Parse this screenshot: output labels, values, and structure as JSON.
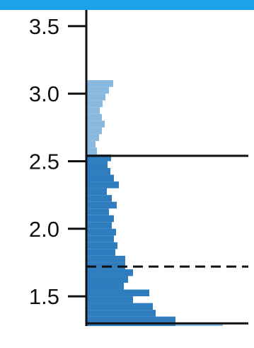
{
  "colors": {
    "top_band": "#1aa3e8",
    "bar_light": "#8ab9df",
    "bar_dark": "#2f7dbe",
    "axis": "#111111",
    "reference_line": "#111111"
  },
  "chart_data": {
    "type": "bar",
    "orientation": "horizontal",
    "title": "",
    "xlabel": "",
    "ylabel": "",
    "ylim": [
      1.28,
      3.62
    ],
    "xlim": [
      0,
      1
    ],
    "y_ticks": [
      {
        "value": 1.5,
        "label": "1.5"
      },
      {
        "value": 2.0,
        "label": "2.0"
      },
      {
        "value": 2.5,
        "label": "2.5"
      },
      {
        "value": 3.0,
        "label": "3.0"
      },
      {
        "value": 3.5,
        "label": "3.5"
      }
    ],
    "bin_width": 0.05,
    "series": [
      {
        "color": "#8ab9df",
        "bins": [
          {
            "y_low": 1.28,
            "y_high": 1.3,
            "value": 0.772
          },
          {
            "y_low": 2.55,
            "y_high": 2.6,
            "value": 0.06
          },
          {
            "y_low": 2.6,
            "y_high": 2.65,
            "value": 0.052
          },
          {
            "y_low": 2.65,
            "y_high": 2.7,
            "value": 0.072
          },
          {
            "y_low": 2.7,
            "y_high": 2.75,
            "value": 0.088
          },
          {
            "y_low": 2.75,
            "y_high": 2.8,
            "value": 0.104
          },
          {
            "y_low": 2.8,
            "y_high": 2.85,
            "value": 0.088
          },
          {
            "y_low": 2.85,
            "y_high": 2.9,
            "value": 0.076
          },
          {
            "y_low": 2.9,
            "y_high": 2.95,
            "value": 0.092
          },
          {
            "y_low": 2.95,
            "y_high": 3.0,
            "value": 0.108
          },
          {
            "y_low": 3.0,
            "y_high": 3.05,
            "value": 0.128
          },
          {
            "y_low": 3.05,
            "y_high": 3.1,
            "value": 0.152
          }
        ]
      },
      {
        "color": "#2f7dbe",
        "bins": [
          {
            "y_low": 1.28,
            "y_high": 1.35,
            "value": 0.504
          },
          {
            "y_low": 1.35,
            "y_high": 1.4,
            "value": 0.392
          },
          {
            "y_low": 1.4,
            "y_high": 1.45,
            "value": 0.376
          },
          {
            "y_low": 1.45,
            "y_high": 1.5,
            "value": 0.264
          },
          {
            "y_low": 1.5,
            "y_high": 1.55,
            "value": 0.356
          },
          {
            "y_low": 1.55,
            "y_high": 1.6,
            "value": 0.212
          },
          {
            "y_low": 1.6,
            "y_high": 1.65,
            "value": 0.236
          },
          {
            "y_low": 1.65,
            "y_high": 1.7,
            "value": 0.264
          },
          {
            "y_low": 1.7,
            "y_high": 1.75,
            "value": 0.22
          },
          {
            "y_low": 1.75,
            "y_high": 1.8,
            "value": 0.22
          },
          {
            "y_low": 1.8,
            "y_high": 1.85,
            "value": 0.164
          },
          {
            "y_low": 1.85,
            "y_high": 1.9,
            "value": 0.176
          },
          {
            "y_low": 1.9,
            "y_high": 1.95,
            "value": 0.156
          },
          {
            "y_low": 1.95,
            "y_high": 2.0,
            "value": 0.168
          },
          {
            "y_low": 2.0,
            "y_high": 2.05,
            "value": 0.144
          },
          {
            "y_low": 2.05,
            "y_high": 2.1,
            "value": 0.156
          },
          {
            "y_low": 2.1,
            "y_high": 2.15,
            "value": 0.128
          },
          {
            "y_low": 2.15,
            "y_high": 2.2,
            "value": 0.172
          },
          {
            "y_low": 2.2,
            "y_high": 2.25,
            "value": 0.144
          },
          {
            "y_low": 2.25,
            "y_high": 2.3,
            "value": 0.116
          },
          {
            "y_low": 2.3,
            "y_high": 2.35,
            "value": 0.184
          },
          {
            "y_low": 2.35,
            "y_high": 2.4,
            "value": 0.156
          },
          {
            "y_low": 2.4,
            "y_high": 2.45,
            "value": 0.136
          },
          {
            "y_low": 2.45,
            "y_high": 2.5,
            "value": 0.12
          },
          {
            "y_low": 2.5,
            "y_high": 2.55,
            "value": 0.14
          }
        ]
      }
    ],
    "reference_lines": [
      {
        "y": 2.54,
        "style": "solid"
      },
      {
        "y": 1.72,
        "style": "dashed"
      },
      {
        "y": 1.3,
        "style": "solid"
      }
    ],
    "grid": false,
    "legend": "none"
  }
}
